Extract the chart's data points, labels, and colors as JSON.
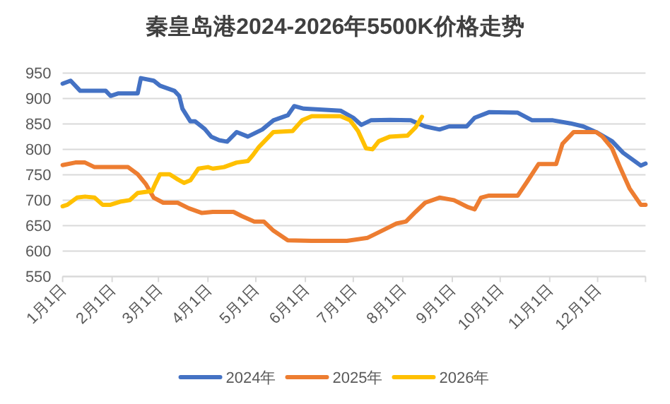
{
  "chart_data": {
    "type": "line",
    "title": "秦皇岛港2024-2026年5500K价格走势",
    "xlim": [
      "--01-01",
      "--12-31"
    ],
    "xticks": [
      {
        "value": "--01-01",
        "label": "1月1日"
      },
      {
        "value": "--02-01",
        "label": "2月1日"
      },
      {
        "value": "--03-01",
        "label": "3月1日"
      },
      {
        "value": "--04-01",
        "label": "4月1日"
      },
      {
        "value": "--05-01",
        "label": "5月1日"
      },
      {
        "value": "--06-01",
        "label": "6月1日"
      },
      {
        "value": "--07-01",
        "label": "7月1日"
      },
      {
        "value": "--08-01",
        "label": "8月1日"
      },
      {
        "value": "--09-01",
        "label": "9月1日"
      },
      {
        "value": "--10-01",
        "label": "10月1日"
      },
      {
        "value": "--11-01",
        "label": "11月1日"
      },
      {
        "value": "--12-01",
        "label": "12月1日"
      },
      {
        "value": "--12-31",
        "label": null
      }
    ],
    "ylim": [
      550,
      950
    ],
    "yticks": [
      550,
      600,
      650,
      700,
      750,
      800,
      850,
      900,
      950
    ],
    "grid": "y",
    "legend": "bottom",
    "series": [
      {
        "name": "2024年",
        "color": "#4472c4",
        "x": [
          "--01-01",
          "--01-06",
          "--01-12",
          "--01-28",
          "--01-31",
          "--02-05",
          "--02-17",
          "--02-19",
          "--02-27",
          "--03-02",
          "--03-11",
          "--03-14",
          "--03-16",
          "--03-21",
          "--03-24",
          "--03-30",
          "--04-03",
          "--04-08",
          "--04-13",
          "--04-19",
          "--04-26",
          "--05-05",
          "--05-12",
          "--05-21",
          "--05-25",
          "--05-31",
          "--06-23",
          "--07-01",
          "--07-06",
          "--07-12",
          "--07-24",
          "--08-06",
          "--08-15",
          "--08-24",
          "--08-30",
          "--09-10",
          "--09-15",
          "--09-24",
          "--10-12",
          "--10-21",
          "--11-03",
          "--11-14",
          "--11-22",
          "--11-30",
          "--12-10",
          "--12-17",
          "--12-28",
          "--12-31"
        ],
        "values": [
          929,
          935,
          915,
          915,
          905,
          910,
          910,
          940,
          935,
          925,
          915,
          905,
          880,
          855,
          855,
          840,
          825,
          818,
          815,
          834,
          825,
          839,
          857,
          867,
          885,
          880,
          876,
          862,
          848,
          857,
          858,
          857,
          845,
          839,
          845,
          845,
          862,
          873,
          872,
          857,
          857,
          851,
          845,
          834,
          816,
          793,
          768,
          772
        ]
      },
      {
        "name": "2025年",
        "color": "#ed7d31",
        "x": [
          "--01-01",
          "--01-09",
          "--01-15",
          "--01-21",
          "--02-11",
          "--02-17",
          "--02-22",
          "--02-27",
          "--03-04",
          "--03-13",
          "--03-20",
          "--03-28",
          "--04-04",
          "--04-17",
          "--04-22",
          "--04-30",
          "--05-06",
          "--05-12",
          "--05-21",
          "--06-05",
          "--06-27",
          "--07-10",
          "--07-19",
          "--07-28",
          "--08-03",
          "--08-09",
          "--08-15",
          "--08-24",
          "--09-02",
          "--09-11",
          "--09-15",
          "--09-19",
          "--09-24",
          "--10-12",
          "--10-18",
          "--10-25",
          "--11-05",
          "--11-09",
          "--11-16",
          "--11-30",
          "--12-04",
          "--12-10",
          "--12-15",
          "--12-21",
          "--12-28",
          "--12-31"
        ],
        "values": [
          769,
          774,
          774,
          765,
          765,
          751,
          732,
          705,
          695,
          695,
          684,
          675,
          677,
          677,
          669,
          658,
          658,
          640,
          621,
          620,
          620,
          626,
          640,
          654,
          658,
          677,
          695,
          705,
          700,
          686,
          682,
          705,
          709,
          709,
          737,
          771,
          771,
          811,
          834,
          834,
          825,
          802,
          765,
          723,
          691,
          691
        ]
      },
      {
        "name": "2026年",
        "color": "#ffc000",
        "x": [
          "--01-01",
          "--01-04",
          "--01-10",
          "--01-15",
          "--01-21",
          "--01-26",
          "--01-31",
          "--02-06",
          "--02-12",
          "--02-17",
          "--02-26",
          "--02-28",
          "--03-02",
          "--03-08",
          "--03-13",
          "--03-17",
          "--03-21",
          "--03-26",
          "--04-01",
          "--04-04",
          "--04-11",
          "--04-19",
          "--04-26",
          "--04-29",
          "--05-03",
          "--05-12",
          "--05-24",
          "--05-30",
          "--06-05",
          "--06-23",
          "--06-29",
          "--07-04",
          "--07-09",
          "--07-13",
          "--07-17",
          "--07-24",
          "--08-04",
          "--08-09",
          "--08-13"
        ],
        "values": [
          688,
          691,
          705,
          707,
          705,
          691,
          691,
          697,
          700,
          714,
          718,
          732,
          751,
          751,
          741,
          734,
          739,
          762,
          765,
          762,
          765,
          774,
          777,
          788,
          805,
          834,
          836,
          857,
          865,
          865,
          857,
          836,
          802,
          800,
          816,
          825,
          827,
          843,
          864
        ]
      }
    ]
  }
}
